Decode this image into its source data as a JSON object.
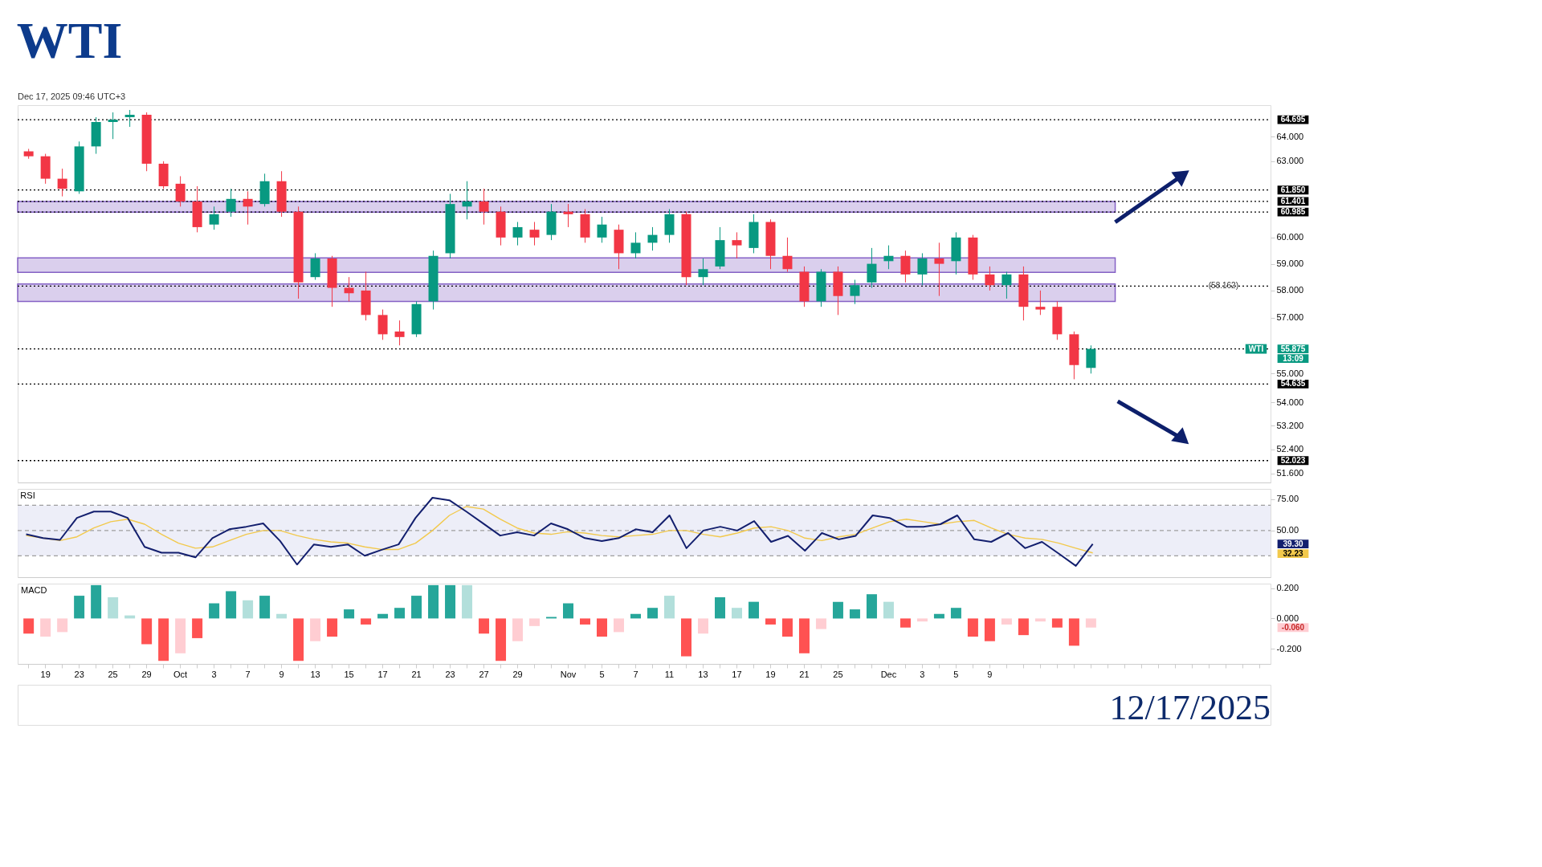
{
  "chart_data": [
    {
      "type": "candlestick",
      "title": "WTI",
      "subtitle": "12/17/2025",
      "log": true,
      "tick_labels": "y",
      "categories": [
        null,
        null,
        null,
        null,
        null,
        null,
        null,
        null,
        null,
        null,
        null,
        null,
        null,
        null,
        null,
        null,
        null,
        null,
        null,
        null,
        null,
        null,
        null,
        null,
        null,
        null,
        null,
        null,
        null,
        null,
        null,
        null,
        null,
        null,
        null,
        null,
        null,
        null,
        null,
        null,
        null,
        null,
        null,
        null,
        null,
        null,
        null,
        null,
        null,
        null,
        null,
        null,
        null,
        null,
        null,
        null,
        null,
        null,
        null,
        null,
        null,
        null,
        null,
        null,
        null,
        null,
        null,
        null,
        null,
        null,
        null,
        null,
        null,
        null
      ],
      "ohlc": [
        [
          63.4,
          63.5,
          63.1,
          63.2
        ],
        [
          63.2,
          63.3,
          62.1,
          62.3
        ],
        [
          62.3,
          62.7,
          61.6,
          61.9
        ],
        [
          61.8,
          63.8,
          61.7,
          63.6
        ],
        [
          63.6,
          64.8,
          63.3,
          64.6
        ],
        [
          64.6,
          65.0,
          63.9,
          64.7
        ],
        [
          64.8,
          65.1,
          64.4,
          64.9
        ],
        [
          64.9,
          65.0,
          62.6,
          62.9
        ],
        [
          62.9,
          63.0,
          61.9,
          62.0
        ],
        [
          62.1,
          62.4,
          61.2,
          61.4
        ],
        [
          61.4,
          62.0,
          60.2,
          60.4
        ],
        [
          60.5,
          61.2,
          60.3,
          60.9
        ],
        [
          61.0,
          61.9,
          60.8,
          61.5
        ],
        [
          61.5,
          61.8,
          60.5,
          61.2
        ],
        [
          61.3,
          62.5,
          61.2,
          62.2
        ],
        [
          62.2,
          62.6,
          60.8,
          61.0
        ],
        [
          61.0,
          61.2,
          57.7,
          58.3
        ],
        [
          58.5,
          59.4,
          58.4,
          59.2
        ],
        [
          59.2,
          59.3,
          57.4,
          58.1
        ],
        [
          58.1,
          58.5,
          57.6,
          57.9
        ],
        [
          58.0,
          58.7,
          56.9,
          57.1
        ],
        [
          57.1,
          57.3,
          56.2,
          56.4
        ],
        [
          56.5,
          56.9,
          56.0,
          56.3
        ],
        [
          56.4,
          57.6,
          56.3,
          57.5
        ],
        [
          57.6,
          59.5,
          57.3,
          59.3
        ],
        [
          59.4,
          61.7,
          59.2,
          61.3
        ],
        [
          61.2,
          62.2,
          60.7,
          61.4
        ],
        [
          61.4,
          61.9,
          60.5,
          61.0
        ],
        [
          61.0,
          61.2,
          59.7,
          60.0
        ],
        [
          60.0,
          60.6,
          59.7,
          60.4
        ],
        [
          60.3,
          60.6,
          59.7,
          60.0
        ],
        [
          60.1,
          61.3,
          59.9,
          61.0
        ],
        [
          61.0,
          61.3,
          60.4,
          60.9
        ],
        [
          60.9,
          61.1,
          59.8,
          60.0
        ],
        [
          60.0,
          60.8,
          59.8,
          60.5
        ],
        [
          60.3,
          60.5,
          58.8,
          59.4
        ],
        [
          59.4,
          60.2,
          59.2,
          59.8
        ],
        [
          59.8,
          60.4,
          59.5,
          60.1
        ],
        [
          60.1,
          61.1,
          59.8,
          60.9
        ],
        [
          60.9,
          61.0,
          58.2,
          58.5
        ],
        [
          58.5,
          59.2,
          58.2,
          58.8
        ],
        [
          58.9,
          60.4,
          58.8,
          59.9
        ],
        [
          59.9,
          60.2,
          59.2,
          59.7
        ],
        [
          59.6,
          60.9,
          59.4,
          60.6
        ],
        [
          60.6,
          60.7,
          58.8,
          59.3
        ],
        [
          59.3,
          60.0,
          58.7,
          58.8
        ],
        [
          58.7,
          58.9,
          57.4,
          57.6
        ],
        [
          57.6,
          58.8,
          57.4,
          58.7
        ],
        [
          58.7,
          58.9,
          57.1,
          57.8
        ],
        [
          57.8,
          58.4,
          57.5,
          58.2
        ],
        [
          58.3,
          59.6,
          58.1,
          59.0
        ],
        [
          59.1,
          59.7,
          58.8,
          59.3
        ],
        [
          59.3,
          59.5,
          58.3,
          58.6
        ],
        [
          58.6,
          59.4,
          58.2,
          59.2
        ],
        [
          59.2,
          59.8,
          57.8,
          59.0
        ],
        [
          59.1,
          60.2,
          58.6,
          60.0
        ],
        [
          60.0,
          60.1,
          58.4,
          58.6
        ],
        [
          58.6,
          58.9,
          58.0,
          58.2
        ],
        [
          58.2,
          58.7,
          57.7,
          58.6
        ],
        [
          58.6,
          58.9,
          56.9,
          57.4
        ],
        [
          57.4,
          58.0,
          57.1,
          57.3
        ],
        [
          57.4,
          57.6,
          56.2,
          56.4
        ],
        [
          56.4,
          56.5,
          54.8,
          55.3
        ],
        [
          55.2,
          56.0,
          55.0,
          55.875
        ],
        null,
        null,
        null,
        null,
        null,
        null,
        null,
        null,
        null,
        null
      ],
      "colors": [
        "#f23645",
        "#f23645",
        "#f23645",
        "#089981",
        "#089981",
        "#089981",
        "#089981",
        "#f23645",
        "#f23645",
        "#f23645",
        "#f23645",
        "#089981",
        "#089981",
        "#f23645",
        "#089981",
        "#f23645",
        "#f23645",
        "#089981",
        "#f23645",
        "#f23645",
        "#f23645",
        "#f23645",
        "#f23645",
        "#089981",
        "#089981",
        "#089981",
        "#089981",
        "#f23645",
        "#f23645",
        "#089981",
        "#f23645",
        "#089981",
        "#f23645",
        "#f23645",
        "#089981",
        "#f23645",
        "#089981",
        "#089981",
        "#089981",
        "#f23645",
        "#089981",
        "#089981",
        "#f23645",
        "#089981",
        "#f23645",
        "#f23645",
        "#f23645",
        "#089981",
        "#f23645",
        "#089981",
        "#089981",
        "#089981",
        "#f23645",
        "#089981",
        "#f23645",
        "#089981",
        "#f23645",
        "#f23645",
        "#089981",
        "#f23645",
        "#f23645",
        "#f23645",
        "#f23645",
        "#089981",
        null,
        null,
        null,
        null,
        null,
        null,
        null,
        null,
        null,
        null
      ],
      "ylim": [
        51.3,
        65.3
      ],
      "yticks": [
        {
          "value": 64,
          "label": "64.000"
        },
        {
          "value": 63,
          "label": "63.000"
        },
        {
          "value": 60,
          "label": "60.000"
        },
        {
          "value": 59,
          "label": "59.000"
        },
        {
          "value": 58,
          "label": "58.000"
        },
        {
          "value": 57,
          "label": "57.000"
        },
        {
          "value": 55,
          "label": "55.000"
        },
        {
          "value": 54,
          "label": "54.000"
        },
        {
          "value": 53.2,
          "label": "53.200"
        },
        {
          "value": 52.4,
          "label": "52.400"
        },
        {
          "value": 51.6,
          "label": "51.600"
        }
      ],
      "bands": [
        {
          "axis": "y",
          "from": 60.985,
          "to": 61.401,
          "color": "#d1c4e9"
        },
        {
          "axis": "y",
          "from": 58.68,
          "to": 59.22,
          "color": "#d1c4e9"
        },
        {
          "axis": "y",
          "from": 57.6,
          "to": 58.24,
          "color": "#d1c4e9"
        }
      ],
      "ref_lines": [
        {
          "axis": "y",
          "value": 64.695,
          "label": "64.695",
          "line_style": "dotted",
          "color": "#000000"
        },
        {
          "axis": "y",
          "value": 61.85,
          "label": "61.850",
          "line_style": "dotted",
          "color": "#000000"
        },
        {
          "axis": "y",
          "value": 61.401,
          "label": "61.401",
          "line_style": "dotted",
          "color": "#000000"
        },
        {
          "axis": "y",
          "value": 60.985,
          "label": "60.985",
          "line_style": "dotted",
          "color": "#000000"
        },
        {
          "axis": "y",
          "value": 58.162,
          "label": "(58.162)",
          "line_style": "dotted",
          "color": "#000000"
        },
        {
          "axis": "y",
          "value": 55.875,
          "label": null,
          "line_style": "dotted",
          "color": "#000000"
        },
        {
          "axis": "y",
          "value": 54.635,
          "label": "54.635",
          "line_style": "dotted",
          "color": "#000000"
        },
        {
          "axis": "y",
          "value": 52.023,
          "label": "52.023",
          "line_style": "dotted",
          "color": "#000000"
        }
      ],
      "annotations": [
        "Dec 17, 2025 09:46 UTC+3",
        "WTI",
        "55.875",
        "13:09"
      ]
    },
    {
      "type": "line",
      "title": "RSI",
      "tick_labels": "y",
      "categories": [
        null,
        null,
        null,
        null,
        null,
        null,
        null,
        null,
        null,
        null,
        null,
        null,
        null,
        null,
        null,
        null,
        null,
        null,
        null,
        null,
        null,
        null,
        null,
        null,
        null,
        null,
        null,
        null,
        null,
        null,
        null,
        null,
        null,
        null,
        null,
        null,
        null,
        null,
        null,
        null,
        null,
        null,
        null,
        null,
        null,
        null,
        null,
        null,
        null,
        null,
        null,
        null,
        null,
        null,
        null,
        null,
        null,
        null,
        null,
        null,
        null,
        null,
        null,
        null,
        null,
        null,
        null,
        null,
        null,
        null,
        null,
        null,
        null,
        null
      ],
      "series": [
        {
          "color": "#f2c94c",
          "values": [
            46,
            44,
            42,
            45,
            52,
            57,
            59,
            55,
            47,
            40,
            36,
            37,
            42,
            47,
            50,
            50,
            46,
            43,
            41,
            40,
            37,
            35,
            35,
            40,
            50,
            62,
            69,
            67,
            59,
            52,
            48,
            47,
            49,
            48,
            46,
            45,
            46,
            47,
            50,
            50,
            47,
            45,
            48,
            52,
            53,
            50,
            44,
            42,
            45,
            47,
            52,
            57,
            59,
            57,
            55,
            57,
            58,
            52,
            47,
            44,
            43,
            40,
            36,
            32.23,
            null,
            null,
            null,
            null,
            null,
            null,
            null,
            null,
            null,
            null
          ]
        },
        {
          "color": "#131f6e",
          "values": [
            47,
            44,
            42.6,
            60,
            65,
            65,
            60,
            37,
            32.4,
            32.4,
            28.7,
            44,
            51,
            53,
            55.6,
            41.7,
            23,
            39,
            37,
            39,
            30,
            34.7,
            39,
            60,
            76,
            74,
            65,
            55.6,
            46,
            48.6,
            46,
            55.6,
            51,
            44,
            41.7,
            44,
            51,
            48.6,
            62,
            36,
            50,
            53,
            50,
            57.5,
            41,
            45.8,
            34,
            48,
            43,
            45.8,
            62,
            60,
            53,
            53,
            55,
            62,
            43,
            41,
            48,
            36,
            41,
            31.6,
            22,
            39.3,
            null,
            null,
            null,
            null,
            null,
            null,
            null,
            null,
            null,
            null
          ]
        }
      ],
      "ylim": [
        13,
        83
      ],
      "yticks": [
        {
          "value": 75,
          "label": "75.00"
        },
        {
          "value": 50,
          "label": "50.00"
        }
      ],
      "bands": [
        {
          "axis": "y",
          "from": 30,
          "to": 70,
          "color": "#e8eaf6"
        }
      ],
      "ref_lines": [
        {
          "axis": "y",
          "value": 70,
          "label": null,
          "line_style": "dashed",
          "color": "#9e9e9e"
        },
        {
          "axis": "y",
          "value": 50,
          "label": null,
          "line_style": "dashed",
          "color": "#9e9e9e"
        },
        {
          "axis": "y",
          "value": 30,
          "label": null,
          "line_style": "dashed",
          "color": "#9e9e9e"
        }
      ],
      "annotations": [
        "39.30",
        "32.23"
      ]
    },
    {
      "type": "bar",
      "title": "MACD",
      "categories": [
        null,
        "19",
        null,
        "23",
        null,
        "25",
        null,
        "29",
        null,
        "Oct",
        null,
        "3",
        null,
        "7",
        null,
        "9",
        null,
        "13",
        null,
        "15",
        null,
        "17",
        null,
        "21",
        null,
        "23",
        null,
        "27",
        null,
        "29",
        null,
        null,
        "Nov",
        null,
        "5",
        null,
        "7",
        null,
        "11",
        null,
        "13",
        null,
        "17",
        null,
        "19",
        null,
        "21",
        null,
        "25",
        null,
        null,
        "Dec",
        null,
        "3",
        null,
        "5",
        null,
        "9",
        null,
        null,
        null,
        null,
        null,
        null,
        null,
        null,
        null,
        null,
        null,
        null,
        null,
        null,
        null,
        null
      ],
      "values": [
        -0.1,
        -0.12,
        -0.09,
        0.15,
        0.22,
        0.14,
        0.02,
        -0.17,
        -0.28,
        -0.23,
        -0.13,
        0.1,
        0.18,
        0.12,
        0.15,
        0.03,
        -0.28,
        -0.15,
        -0.12,
        0.06,
        -0.04,
        0.03,
        0.07,
        0.15,
        0.22,
        0.22,
        0.22,
        -0.1,
        -0.28,
        -0.15,
        -0.05,
        0.01,
        0.1,
        -0.04,
        -0.12,
        -0.09,
        0.03,
        0.07,
        0.15,
        -0.25,
        -0.1,
        0.14,
        0.07,
        0.11,
        -0.04,
        -0.12,
        -0.23,
        -0.07,
        0.11,
        0.06,
        0.16,
        0.11,
        -0.06,
        -0.02,
        0.03,
        0.07,
        -0.12,
        -0.15,
        -0.04,
        -0.11,
        -0.02,
        -0.06,
        -0.18,
        -0.06,
        null,
        null,
        null,
        null,
        null,
        null,
        null,
        null,
        null,
        null
      ],
      "colors": [
        "#ff5252",
        "#ffcdd2",
        "#ffcdd2",
        "#26a69a",
        "#26a69a",
        "#b2dfdb",
        "#b2dfdb",
        "#ff5252",
        "#ff5252",
        "#ffcdd2",
        "#ff5252",
        "#26a69a",
        "#26a69a",
        "#b2dfdb",
        "#26a69a",
        "#b2dfdb",
        "#ff5252",
        "#ffcdd2",
        "#ff5252",
        "#26a69a",
        "#ff5252",
        "#26a69a",
        "#26a69a",
        "#26a69a",
        "#26a69a",
        "#26a69a",
        "#b2dfdb",
        "#ff5252",
        "#ff5252",
        "#ffcdd2",
        "#ffcdd2",
        "#26a69a",
        "#26a69a",
        "#ff5252",
        "#ff5252",
        "#ffcdd2",
        "#26a69a",
        "#26a69a",
        "#b2dfdb",
        "#ff5252",
        "#ffcdd2",
        "#26a69a",
        "#b2dfdb",
        "#26a69a",
        "#ff5252",
        "#ff5252",
        "#ff5252",
        "#ffcdd2",
        "#26a69a",
        "#26a69a",
        "#26a69a",
        "#b2dfdb",
        "#ff5252",
        "#ffcdd2",
        "#26a69a",
        "#26a69a",
        "#ff5252",
        "#ff5252",
        "#ffcdd2",
        "#ff5252",
        "#ffcdd2",
        "#ff5252",
        "#ff5252",
        "#ffcdd2",
        null,
        null,
        null,
        null,
        null,
        null,
        null,
        null,
        null,
        null
      ],
      "ylim": [
        -0.3,
        0.23
      ],
      "yticks": [
        {
          "value": 0.2,
          "label": "0.200"
        },
        {
          "value": 0,
          "label": "0.000"
        },
        {
          "value": -0.2,
          "label": "-0.200"
        }
      ],
      "annotations": [
        "-0.060"
      ]
    }
  ]
}
